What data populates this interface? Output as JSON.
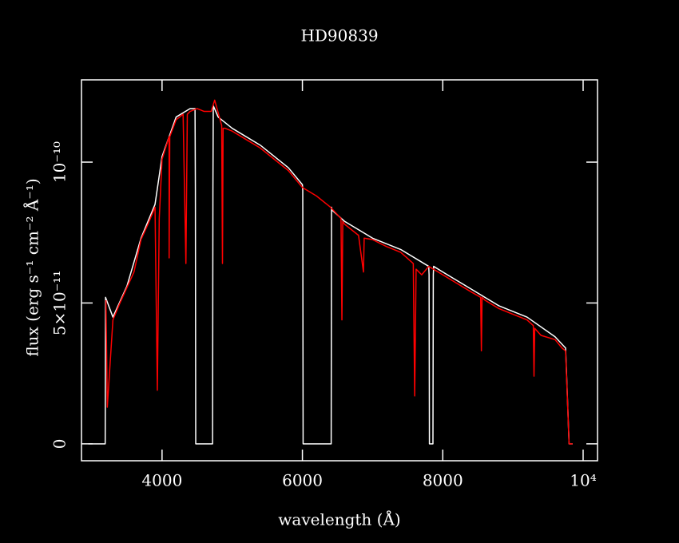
{
  "chart_data": {
    "type": "line",
    "title": "HD90839",
    "xlabel": "wavelength (Å)",
    "ylabel": "flux (erg s⁻¹ cm⁻² Å⁻¹)",
    "xlim": [
      2852,
      10205
    ],
    "ylim": [
      -6e-12,
      1.292e-10
    ],
    "xticks": [
      4000,
      6000,
      8000,
      {
        "value": 10000,
        "label": "10⁴"
      }
    ],
    "yticks": [
      0,
      {
        "value": 5e-11,
        "label": "5×10⁻¹¹"
      },
      {
        "value": 1e-10,
        "label": "10⁻¹⁰"
      }
    ],
    "series": [
      {
        "color": "#ffffff",
        "x": [
          2950,
          3190,
          3195,
          3300,
          3500,
          3700,
          3900,
          4000,
          4200,
          4400,
          4470,
          4475,
          4480,
          4720,
          4725,
          4730,
          4800,
          5000,
          5400,
          5800,
          6000,
          6005,
          6010,
          6410,
          6415,
          6420,
          6600,
          7000,
          7400,
          7800,
          7805,
          7810,
          7860,
          7865,
          7870,
          8000,
          8400,
          8800,
          9200,
          9600,
          9750,
          9800,
          9850
        ],
        "values": [
          0,
          0,
          5.2e-11,
          4.5e-11,
          5.6e-11,
          7.3e-11,
          8.5e-11,
          1.02e-10,
          1.16e-10,
          1.19e-10,
          1.19e-10,
          9e-11,
          0,
          0,
          9e-11,
          1.2e-10,
          1.16e-10,
          1.12e-10,
          1.06e-10,
          9.8e-11,
          9.2e-11,
          9e-11,
          0,
          0,
          8.4e-11,
          8.3e-11,
          7.9e-11,
          7.3e-11,
          6.9e-11,
          6.3e-11,
          6e-11,
          0,
          0,
          6e-11,
          6.3e-11,
          6.1e-11,
          5.5e-11,
          4.9e-11,
          4.5e-11,
          3.8e-11,
          3.4e-11,
          0,
          0
        ]
      },
      {
        "color": "#ff0000",
        "x": [
          3200,
          3220,
          3300,
          3400,
          3500,
          3600,
          3700,
          3800,
          3900,
          3933,
          3960,
          4000,
          4100,
          4101,
          4110,
          4200,
          4300,
          4340,
          4360,
          4400,
          4500,
          4600,
          4700,
          4750,
          4850,
          4861,
          4870,
          4900,
          5000,
          5200,
          5400,
          5600,
          5800,
          6000,
          6200,
          6400,
          6550,
          6563,
          6575,
          6600,
          6800,
          6870,
          6880,
          7000,
          7200,
          7400,
          7580,
          7600,
          7620,
          7700,
          7800,
          8000,
          8200,
          8400,
          8540,
          8550,
          8560,
          8600,
          8800,
          9000,
          9200,
          9290,
          9300,
          9310,
          9400,
          9600,
          9700,
          9750,
          9800,
          9850
        ],
        "values": [
          5.1e-11,
          1.3e-11,
          4.4e-11,
          5e-11,
          5.55e-11,
          6.1e-11,
          7.25e-11,
          7.8e-11,
          8.4e-11,
          1.9e-11,
          8e-11,
          1.01e-10,
          1.09e-10,
          6.6e-11,
          1.09e-10,
          1.15e-10,
          1.17e-10,
          6.4e-11,
          1.17e-10,
          1.18e-10,
          1.19e-10,
          1.18e-10,
          1.18e-10,
          1.22e-10,
          1.13e-10,
          6.4e-11,
          1.12e-10,
          1.12e-10,
          1.11e-10,
          1.08e-10,
          1.05e-10,
          1.01e-10,
          9.7e-11,
          9.1e-11,
          8.8e-11,
          8.4e-11,
          8e-11,
          4.4e-11,
          7.9e-11,
          7.8e-11,
          7.4e-11,
          6.1e-11,
          7.3e-11,
          7.25e-11,
          7e-11,
          6.8e-11,
          6.4e-11,
          1.7e-11,
          6.2e-11,
          6e-11,
          6.3e-11,
          6e-11,
          5.7e-11,
          5.4e-11,
          5.2e-11,
          3.3e-11,
          5.2e-11,
          5.1e-11,
          4.8e-11,
          4.6e-11,
          4.4e-11,
          4.2e-11,
          2.4e-11,
          4.1e-11,
          3.85e-11,
          3.7e-11,
          3.4e-11,
          3.3e-11,
          0,
          0
        ]
      }
    ]
  }
}
